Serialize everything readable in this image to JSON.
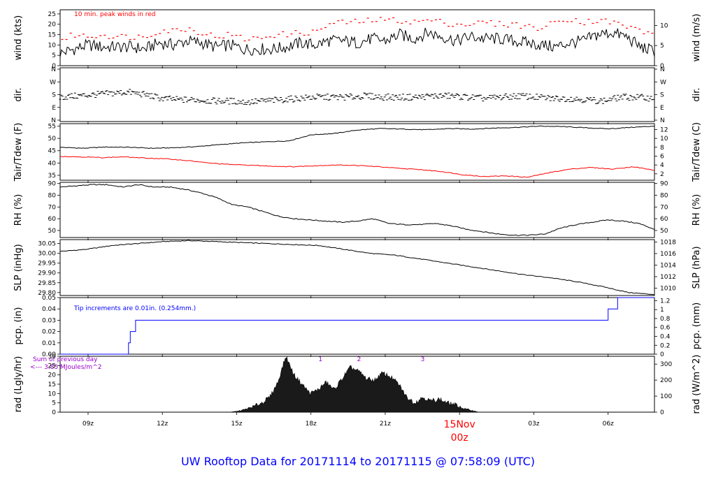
{
  "title": "UW Rooftop Data for 20171114  to  20171115 @ 07:58:09  (UTC)",
  "colors": {
    "primary": "#000000",
    "peak": "#ff0000",
    "tdew": "#ff0000",
    "pcp": "#0000ff",
    "title": "#0000ff",
    "solar": "#9900cc",
    "date": "#ff0000"
  },
  "x_axis": {
    "ticks": [
      "09z",
      "12z",
      "15z",
      "18z",
      "21z",
      "00z",
      "03z",
      "06z"
    ],
    "date_label": "15Nov",
    "date_sublabel": "00z"
  },
  "chart_data": [
    {
      "type": "line",
      "panel": "wind",
      "ylabel": "wind (kts)",
      "ylabel_right": "wind (m/s)",
      "yticks": [
        "0",
        "5",
        "10",
        "15",
        "20",
        "25"
      ],
      "yticks_right": [
        "0",
        "5",
        "10"
      ],
      "ylim": [
        0,
        27
      ],
      "annotation": "10 min. peak winds in red",
      "series": [
        {
          "values": [
            6,
            8,
            10,
            9,
            9,
            9,
            8,
            11,
            10,
            12,
            11,
            9,
            10,
            8,
            8,
            8,
            9,
            11,
            10,
            12,
            12,
            11,
            13,
            12,
            15,
            13,
            16,
            14,
            12,
            14,
            13,
            13,
            12,
            11,
            10,
            9,
            11,
            12,
            15,
            16,
            14,
            9,
            7
          ]
        },
        {
          "values": [
            12,
            15,
            14,
            15,
            14,
            14,
            14,
            17,
            17,
            18,
            16,
            14,
            15,
            13,
            13,
            15,
            15,
            16,
            16,
            20,
            21,
            21,
            22,
            22,
            22,
            21,
            22,
            21,
            20,
            20,
            21,
            20,
            20,
            19,
            18,
            21,
            23,
            21,
            22,
            21,
            19,
            17,
            15
          ]
        }
      ]
    },
    {
      "type": "scatter",
      "panel": "dir",
      "ylabel": "dir.",
      "ylabel_right": "dir.",
      "yticks": [
        "N",
        "E",
        "S",
        "W",
        "N"
      ],
      "ylim": [
        0,
        4
      ],
      "series": [
        {
          "values": [
            1.8,
            1.9,
            2.0,
            2.1,
            2.2,
            2.0,
            1.7,
            1.6,
            1.6,
            1.5,
            1.5,
            1.4,
            1.5,
            1.6,
            1.7,
            1.8,
            1.8,
            1.8,
            1.9,
            1.8,
            1.8,
            1.8,
            1.9,
            1.9,
            1.8,
            1.7,
            1.8,
            1.9,
            1.8,
            1.7,
            1.7,
            1.6,
            1.5,
            1.8,
            1.8,
            1.7
          ]
        }
      ]
    },
    {
      "type": "line",
      "panel": "temp",
      "ylabel": "Tair/Tdew (F)",
      "ylabel_right": "Tair/Tdew (C)",
      "yticks": [
        "35",
        "40",
        "45",
        "50",
        "55"
      ],
      "yticks_right": [
        "2",
        "4",
        "6",
        "8",
        "10",
        "12"
      ],
      "ylim": [
        33,
        56
      ],
      "series": [
        {
          "values": [
            46.4,
            46.0,
            46.5,
            46.4,
            46.0,
            46.2,
            46.7,
            47.5,
            48.2,
            48.6,
            49.0,
            51.5,
            52.0,
            53.4,
            54.0,
            53.8,
            53.5,
            54.0,
            53.8,
            54.2,
            54.5,
            55.0,
            54.8,
            54.3,
            53.9,
            54.5,
            55.0
          ]
        },
        {
          "values": [
            42.7,
            42.5,
            42.2,
            42.5,
            42.0,
            41.7,
            41.0,
            40.0,
            39.4,
            39.1,
            38.7,
            38.5,
            38.9,
            39.2,
            39.0,
            38.5,
            37.8,
            37.3,
            36.5,
            35.2,
            34.5,
            34.8,
            34.2,
            36.0,
            37.5,
            38.2,
            37.5,
            38.5,
            37.0
          ]
        }
      ]
    },
    {
      "type": "line",
      "panel": "rh",
      "ylabel": "RH (%)",
      "ylabel_right": "RH (%)",
      "yticks": [
        "50",
        "60",
        "70",
        "80",
        "90"
      ],
      "ylim": [
        44,
        91
      ],
      "series": [
        {
          "values": [
            87,
            88,
            89,
            89,
            87,
            89,
            87,
            87,
            85,
            82,
            78,
            72,
            70,
            66,
            62,
            60,
            59,
            58,
            57,
            58,
            60,
            56,
            55,
            55,
            56,
            54,
            51,
            49,
            47,
            46,
            46,
            47,
            52,
            55,
            57,
            59,
            58,
            56,
            51
          ]
        }
      ]
    },
    {
      "type": "line",
      "panel": "slp",
      "ylabel": "SLP (inHg)",
      "ylabel_right": "SLP (hPa)",
      "yticks": [
        "29.80",
        "29.85",
        "29.90",
        "29.95",
        "30.00",
        "30.05"
      ],
      "yticks_right": [
        "1010",
        "1012",
        "1014",
        "1016",
        "1018"
      ],
      "ylim": [
        29.785,
        30.07
      ],
      "series": [
        {
          "values": [
            30.01,
            30.02,
            30.04,
            30.05,
            30.06,
            30.065,
            30.06,
            30.055,
            30.05,
            30.045,
            30.04,
            30.02,
            30.0,
            29.99,
            29.97,
            29.95,
            29.93,
            29.91,
            29.89,
            29.875,
            29.855,
            29.83,
            29.8,
            29.79
          ]
        }
      ]
    },
    {
      "type": "line",
      "panel": "pcp",
      "ylabel": "pcp. (in)",
      "ylabel_right": "pcp. (mm)",
      "yticks": [
        "0.00",
        "0.01",
        "0.02",
        "0.03",
        "0.04",
        "0.05"
      ],
      "yticks_right": [
        "0",
        "0.2",
        "0.4",
        "0.6",
        "0.8",
        "1",
        "1.2"
      ],
      "ylim": [
        0,
        0.05
      ],
      "annotation": "Tip increments are 0.01in. (0.254mm.)",
      "series": [
        {
          "values": [
            0,
            0,
            0.01,
            0.02,
            0.03,
            0.03,
            0.03,
            0.04,
            0.05,
            0.05
          ]
        }
      ]
    },
    {
      "type": "area",
      "panel": "rad",
      "ylabel": "rad (Lgly/hr)",
      "ylabel_right": "rad (W/m^2)",
      "yticks": [
        "0",
        "5",
        "10",
        "15",
        "20",
        "25",
        "30"
      ],
      "yticks_right": [
        "0",
        "100",
        "200",
        "300"
      ],
      "ylim": [
        0,
        30
      ],
      "annotation_line1": "Sum of previous day",
      "annotation_line2": "<--- 3.85 MJoules/m^2",
      "hour_marks": [
        "1",
        "2",
        "3"
      ],
      "series": [
        {
          "values": [
            0,
            0.5,
            1.5,
            3,
            5,
            8,
            16,
            30,
            20,
            15,
            10,
            12,
            16,
            12,
            18,
            24,
            22,
            18,
            17,
            21,
            19,
            15,
            8,
            5,
            8,
            6,
            7,
            5,
            4,
            2,
            1,
            0
          ]
        }
      ]
    }
  ]
}
